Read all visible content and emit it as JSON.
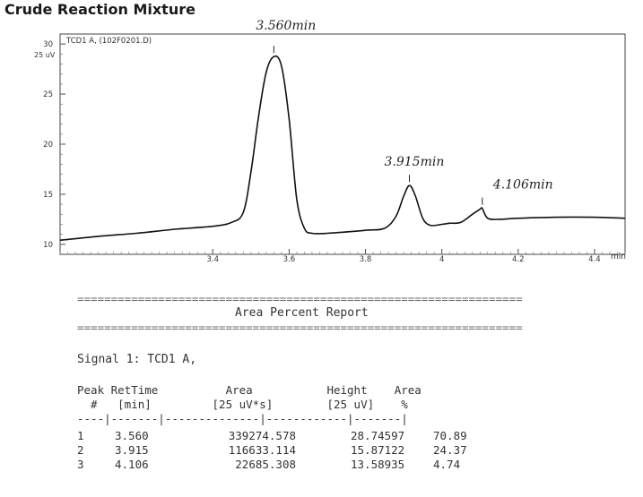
{
  "title": "Crude Reaction Mixture",
  "chart_data": {
    "type": "line",
    "signal_label": "TCD1 A, (102F0201.D)",
    "y_unit": "25 uV",
    "x_unit": "min",
    "ylim": [
      9,
      31
    ],
    "xlim": [
      3.0,
      4.48
    ],
    "y_ticks": [
      10,
      15,
      20,
      25,
      30
    ],
    "x_ticks": [
      3.4,
      3.6,
      3.8,
      4,
      4.2,
      4.4
    ],
    "x_tick_labels": [
      "3.4",
      "3.6",
      "3.8",
      "4",
      "4.2",
      "4.4"
    ],
    "series": [
      {
        "x": [
          3.0,
          3.1,
          3.2,
          3.3,
          3.4,
          3.45,
          3.48,
          3.5,
          3.52,
          3.54,
          3.56,
          3.58,
          3.6,
          3.62,
          3.64,
          3.66,
          3.7,
          3.8,
          3.85,
          3.88,
          3.9,
          3.915,
          3.93,
          3.95,
          3.97,
          4.0,
          4.02,
          4.05,
          4.08,
          4.1,
          4.106,
          4.12,
          4.15,
          4.2,
          4.3,
          4.4,
          4.48
        ],
        "y": [
          10.4,
          10.8,
          11.1,
          11.5,
          11.8,
          12.2,
          13.2,
          17.2,
          22.8,
          27.2,
          28.75,
          27.8,
          22.5,
          14.5,
          11.6,
          11.1,
          11.1,
          11.4,
          11.6,
          12.8,
          14.8,
          15.87,
          14.9,
          12.6,
          11.9,
          12.0,
          12.1,
          12.2,
          13.0,
          13.5,
          13.59,
          12.6,
          12.5,
          12.6,
          12.7,
          12.7,
          12.6
        ]
      }
    ],
    "annotations": [
      {
        "text": "3.560min",
        "x": 3.56
      },
      {
        "text": "3.915min",
        "x": 3.915
      },
      {
        "text": "4.106min",
        "x": 4.106
      }
    ]
  },
  "report": {
    "header": "Area Percent Report",
    "signal": "Signal 1: TCD1 A,",
    "col_header_1": "Peak RetTime          Area           Height    Area",
    "col_header_2": "  #   [min]         [25 uV*s]        [25 uV]    %",
    "separator": "----|-------|--------------|------------|-------|",
    "rows": [
      {
        "peak": "1",
        "ret_time": "3.560",
        "area": "339274.578",
        "height": "28.74597",
        "area_pct": "70.89"
      },
      {
        "peak": "2",
        "ret_time": "3.915",
        "area": "116633.114",
        "height": "15.87122",
        "area_pct": "24.37"
      },
      {
        "peak": "3",
        "ret_time": "4.106",
        "area": "22685.308",
        "height": "13.58935",
        "area_pct": "4.74"
      }
    ]
  }
}
